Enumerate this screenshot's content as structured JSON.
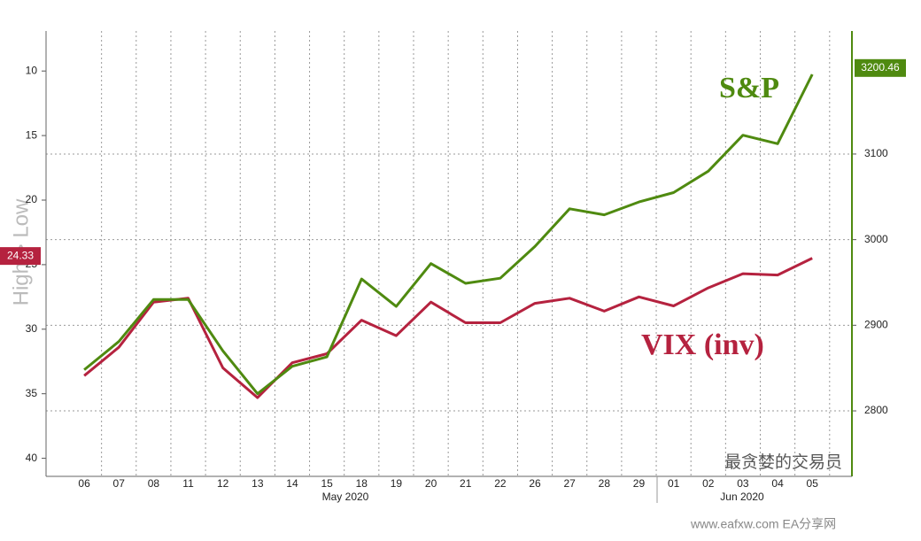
{
  "chart_data": {
    "type": "line",
    "y_axis_title": "High > Low",
    "categories": [
      "06",
      "07",
      "08",
      "11",
      "12",
      "13",
      "14",
      "15",
      "18",
      "19",
      "20",
      "21",
      "22",
      "26",
      "27",
      "28",
      "29",
      "01",
      "02",
      "03",
      "04",
      "05"
    ],
    "months": [
      "May 2020",
      "Jun 2020"
    ],
    "ylim": [
      41.4,
      6.9
    ],
    "yticks": [
      10,
      15,
      20,
      25,
      30,
      35,
      40
    ],
    "y2lim": [
      2723.5,
      3243.7
    ],
    "y2ticks": [
      2800,
      2900,
      3000,
      3100
    ],
    "grid": true,
    "series": [
      {
        "name": "VIX (inv)",
        "color": "#b5223f",
        "axis": "y",
        "last_value": 24.33,
        "values": [
          33.6,
          31.4,
          27.9,
          27.6,
          33.0,
          35.3,
          32.6,
          31.9,
          29.3,
          30.5,
          27.9,
          29.5,
          29.5,
          28.0,
          27.6,
          28.6,
          27.5,
          28.2,
          26.8,
          25.7,
          25.8,
          24.5
        ]
      },
      {
        "name": "S&P",
        "color": "#4f8a10",
        "axis": "y2",
        "last_value": 3200.46,
        "values": [
          2848,
          2881,
          2930,
          2930,
          2870,
          2820,
          2852,
          2863,
          2954,
          2922,
          2972,
          2949,
          2955,
          2992,
          3036,
          3029,
          3044,
          3055,
          3080,
          3122,
          3112,
          3193
        ]
      }
    ]
  },
  "watermarks": {
    "wechat": "最贪婪的交易员",
    "site": "www.eafxw.com  EA分享网"
  }
}
